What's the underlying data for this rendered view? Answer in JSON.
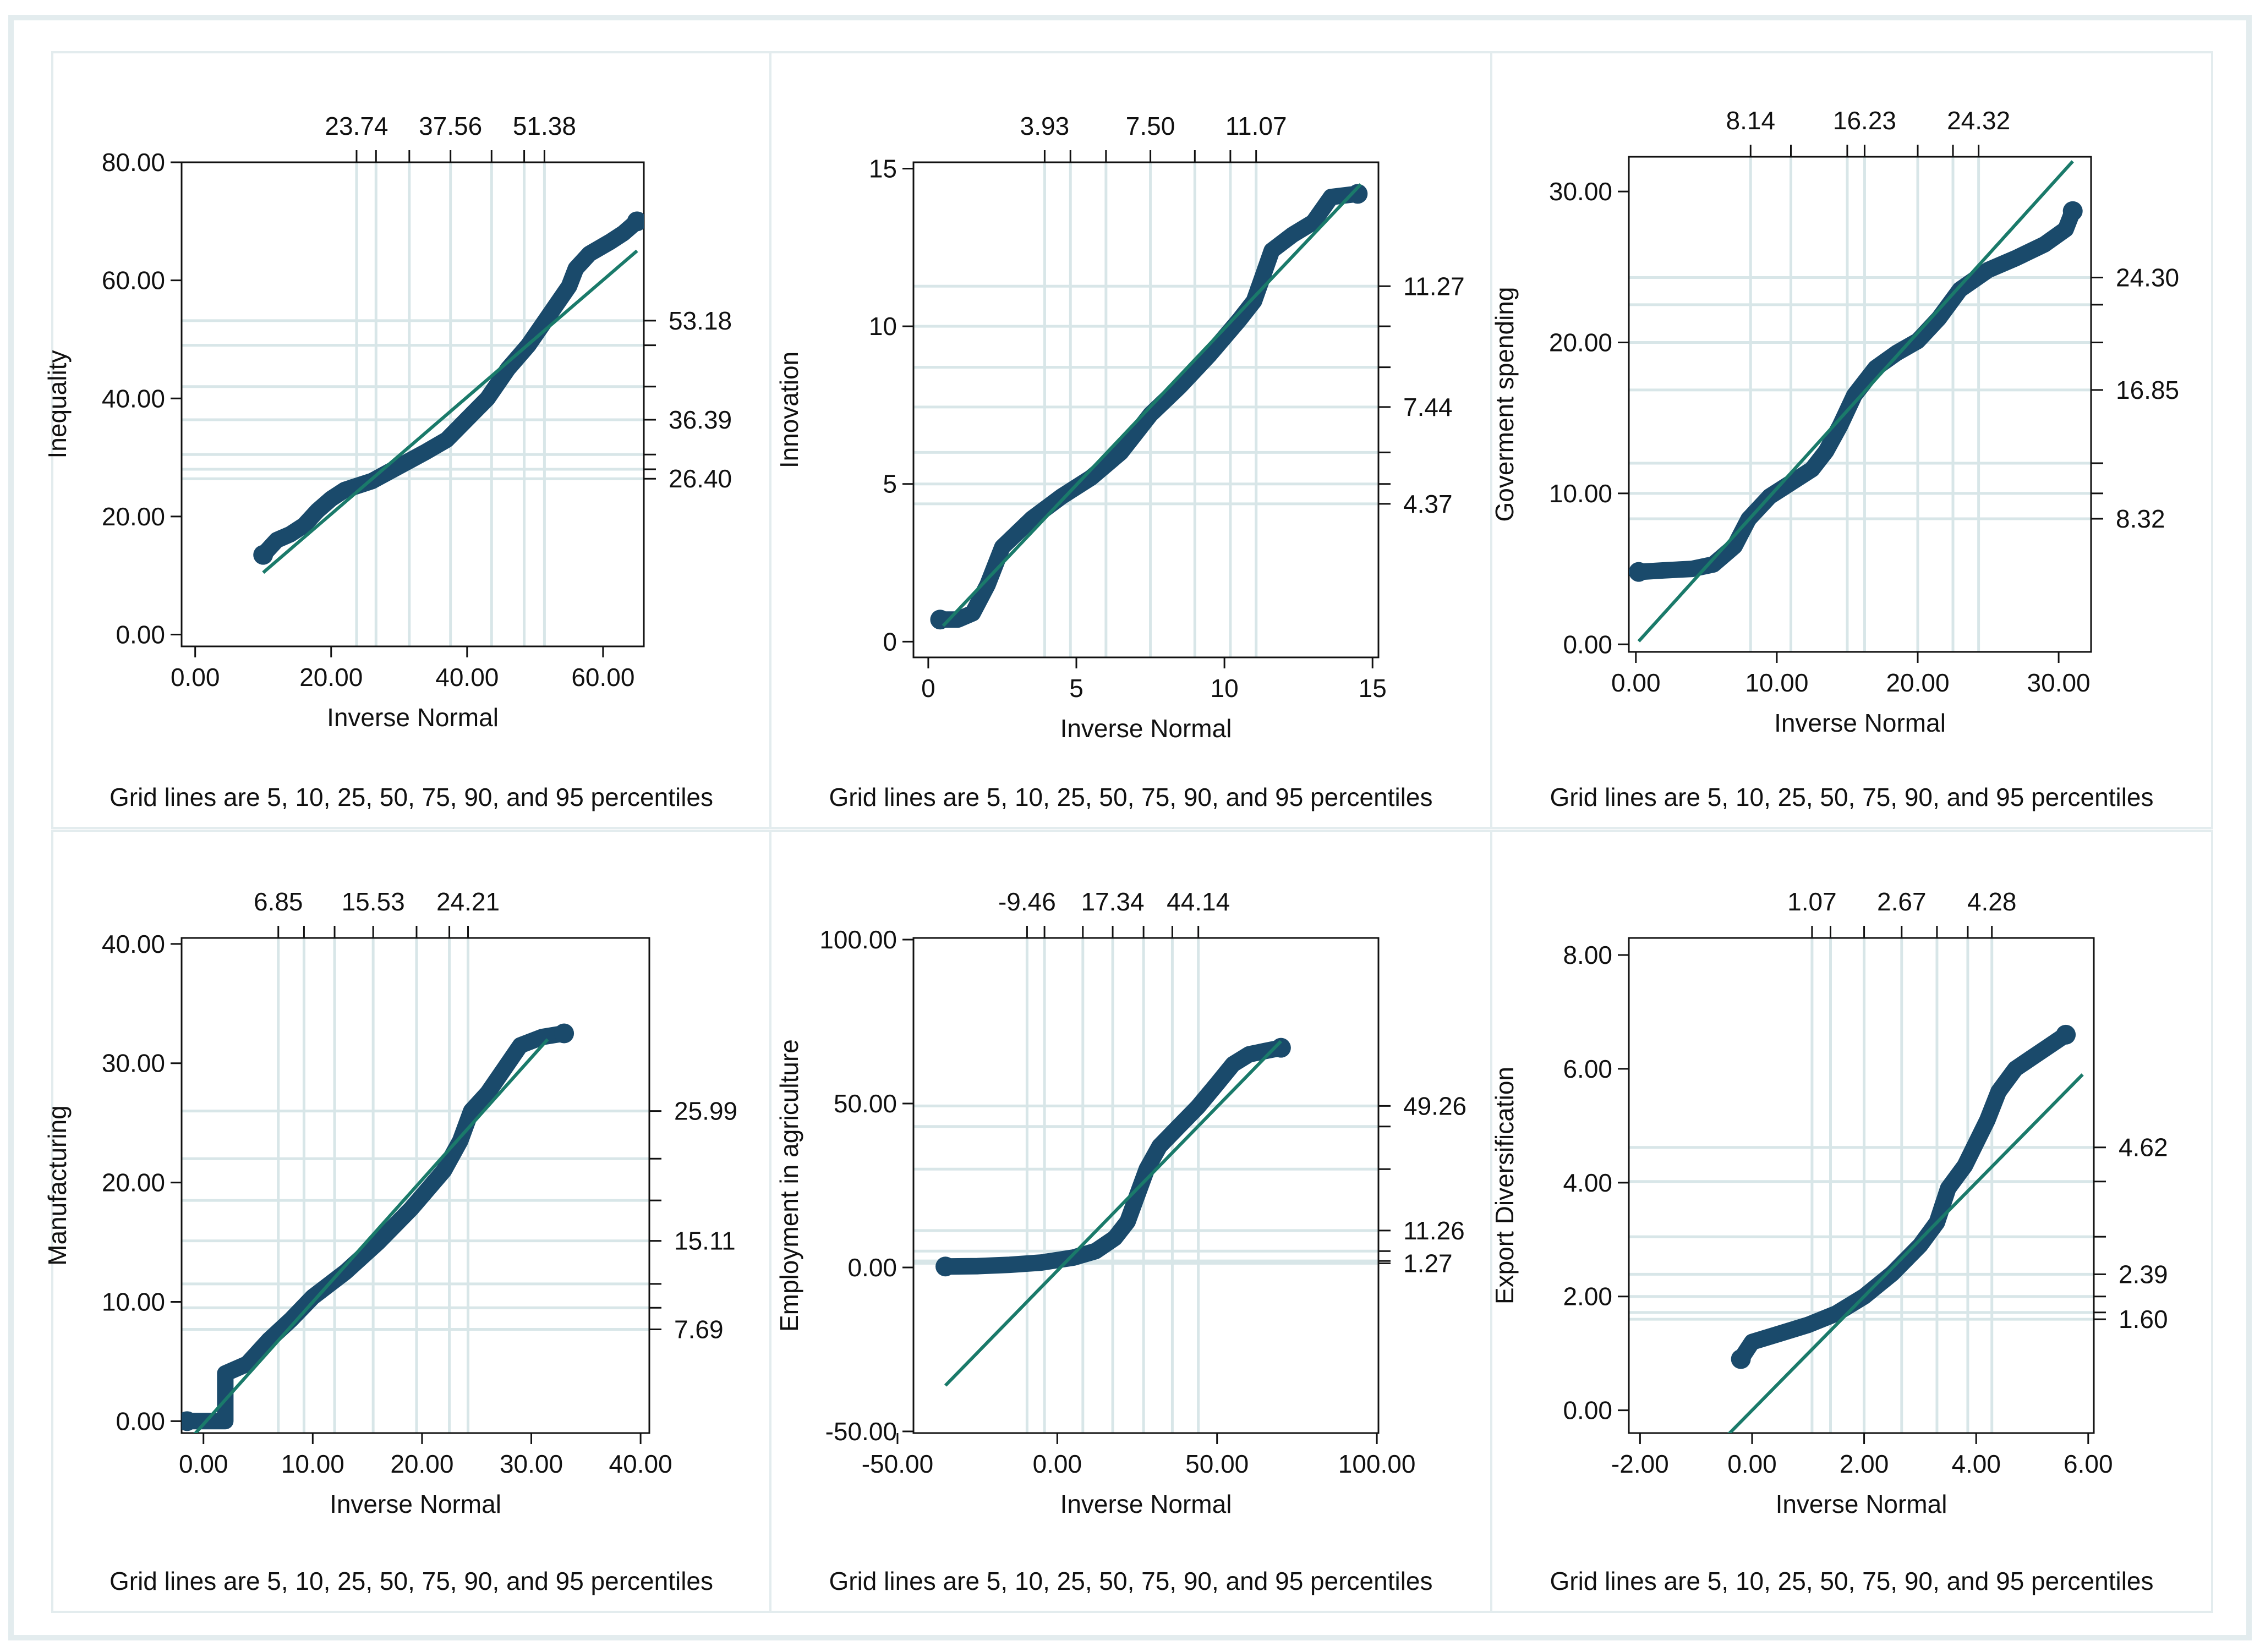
{
  "figure_note": "Grid lines are 5, 10, 25, 50, 75, 90, and 95 percentiles",
  "colors": {
    "marker": "#1a4a6b",
    "fit_line": "#1a7a6a",
    "grid": "#d8e6e8",
    "panel_border": "#e3ecee",
    "axis": "#111111"
  },
  "chart_data": [
    {
      "type": "scatter",
      "title": "",
      "ylabel": "Inequality",
      "xlabel": "Inverse Normal",
      "note": "Grid lines are 5, 10, 25, 50, 75, 90, and 95 percentiles",
      "xlim": [
        -2,
        66
      ],
      "ylim": [
        -2,
        80
      ],
      "x_ticks": [
        0,
        20,
        40,
        60
      ],
      "x_tick_labels": [
        "0.00",
        "20.00",
        "40.00",
        "60.00"
      ],
      "y_ticks": [
        0,
        20,
        40,
        60,
        80
      ],
      "y_tick_labels": [
        "0.00",
        "20.00",
        "40.00",
        "60.00",
        "80.00"
      ],
      "top_ticks": [
        23.74,
        26.6,
        31.5,
        37.56,
        43.6,
        48.4,
        51.38
      ],
      "top_labels": [
        {
          "value": 23.74,
          "text": "23.74"
        },
        {
          "value": 37.56,
          "text": "37.56"
        },
        {
          "value": 51.38,
          "text": "51.38"
        }
      ],
      "right_ticks": [
        26.4,
        28.0,
        30.5,
        36.39,
        42.0,
        49.0,
        53.18
      ],
      "right_labels": [
        {
          "value": 53.18,
          "text": "53.18"
        },
        {
          "value": 36.39,
          "text": "36.39"
        },
        {
          "value": 26.4,
          "text": "26.40"
        }
      ],
      "fit_line": [
        [
          10,
          10.5
        ],
        [
          65,
          65
        ]
      ],
      "curve": [
        [
          10,
          13.5
        ],
        [
          12,
          16
        ],
        [
          14,
          17
        ],
        [
          16,
          18.5
        ],
        [
          18,
          21
        ],
        [
          20,
          23
        ],
        [
          22,
          24.5
        ],
        [
          26,
          26
        ],
        [
          30,
          28.5
        ],
        [
          34,
          31
        ],
        [
          37,
          33
        ],
        [
          40,
          36.5
        ],
        [
          43,
          40
        ],
        [
          46,
          45
        ],
        [
          49,
          49
        ],
        [
          52,
          54
        ],
        [
          55,
          59
        ],
        [
          56,
          62
        ],
        [
          58,
          64.5
        ],
        [
          61,
          66.5
        ],
        [
          63,
          68
        ],
        [
          65,
          70
        ]
      ]
    },
    {
      "type": "scatter",
      "title": "",
      "ylabel": "Innovation",
      "xlabel": "Inverse Normal",
      "note": "Grid lines are 5, 10, 25, 50, 75, 90, and 95 percentiles",
      "xlim": [
        -0.5,
        15.2
      ],
      "ylim": [
        -0.5,
        15.2
      ],
      "x_ticks": [
        0,
        5,
        10,
        15
      ],
      "x_tick_labels": [
        "0",
        "5",
        "10",
        "15"
      ],
      "y_ticks": [
        0,
        5,
        10,
        15
      ],
      "y_tick_labels": [
        "0",
        "5",
        "10",
        "15"
      ],
      "top_ticks": [
        3.93,
        4.8,
        6.0,
        7.5,
        9.0,
        10.2,
        11.07
      ],
      "top_labels": [
        {
          "value": 3.93,
          "text": "3.93"
        },
        {
          "value": 7.5,
          "text": "7.50"
        },
        {
          "value": 11.07,
          "text": "11.07"
        }
      ],
      "right_ticks": [
        4.37,
        5.0,
        6.0,
        7.44,
        8.7,
        10.0,
        11.27
      ],
      "right_labels": [
        {
          "value": 11.27,
          "text": "11.27"
        },
        {
          "value": 7.44,
          "text": "7.44"
        },
        {
          "value": 4.37,
          "text": "4.37"
        }
      ],
      "fit_line": [
        [
          0.5,
          0.5
        ],
        [
          14.6,
          14.5
        ]
      ],
      "curve": [
        [
          0.4,
          0.7
        ],
        [
          1.0,
          0.7
        ],
        [
          1.5,
          0.9
        ],
        [
          2.0,
          1.8
        ],
        [
          2.5,
          3.0
        ],
        [
          3.5,
          3.9
        ],
        [
          4.5,
          4.6
        ],
        [
          5.5,
          5.2
        ],
        [
          6.5,
          6.0
        ],
        [
          7.5,
          7.2
        ],
        [
          8.5,
          8.1
        ],
        [
          9.5,
          9.1
        ],
        [
          10.5,
          10.2
        ],
        [
          11.0,
          10.8
        ],
        [
          11.3,
          11.6
        ],
        [
          11.6,
          12.4
        ],
        [
          12.3,
          12.9
        ],
        [
          13.0,
          13.3
        ],
        [
          13.6,
          14.1
        ],
        [
          14.5,
          14.2
        ]
      ]
    },
    {
      "type": "scatter",
      "title": "",
      "ylabel": "Goverment spending",
      "xlabel": "Inverse Normal",
      "note": "Grid lines are 5, 10, 25, 50, 75, 90, and 95 percentiles",
      "xlim": [
        -0.5,
        32.3
      ],
      "ylim": [
        -0.5,
        32.3
      ],
      "x_ticks": [
        0,
        10,
        20,
        30
      ],
      "x_tick_labels": [
        "0.00",
        "10.00",
        "20.00",
        "30.00"
      ],
      "y_ticks": [
        0,
        10,
        20,
        30
      ],
      "y_tick_labels": [
        "0.00",
        "10.00",
        "20.00",
        "30.00"
      ],
      "top_ticks": [
        8.14,
        11.0,
        15.0,
        16.23,
        20.0,
        22.5,
        24.32
      ],
      "top_labels": [
        {
          "value": 8.14,
          "text": "8.14"
        },
        {
          "value": 16.23,
          "text": "16.23"
        },
        {
          "value": 24.32,
          "text": "24.32"
        }
      ],
      "right_ticks": [
        8.32,
        10.0,
        12.0,
        16.85,
        20.0,
        22.5,
        24.3
      ],
      "right_labels": [
        {
          "value": 24.3,
          "text": "24.30"
        },
        {
          "value": 16.85,
          "text": "16.85"
        },
        {
          "value": 8.32,
          "text": "8.32"
        }
      ],
      "fit_line": [
        [
          0.2,
          0.2
        ],
        [
          31.0,
          32.0
        ]
      ],
      "curve": [
        [
          0.2,
          4.8
        ],
        [
          2.0,
          4.9
        ],
        [
          4.0,
          5.0
        ],
        [
          5.5,
          5.3
        ],
        [
          7.0,
          6.5
        ],
        [
          8.0,
          8.3
        ],
        [
          9.5,
          9.8
        ],
        [
          11.0,
          10.7
        ],
        [
          12.5,
          11.6
        ],
        [
          13.5,
          12.8
        ],
        [
          14.5,
          14.5
        ],
        [
          15.5,
          16.5
        ],
        [
          17.0,
          18.3
        ],
        [
          18.5,
          19.3
        ],
        [
          20.0,
          20.1
        ],
        [
          21.5,
          21.6
        ],
        [
          23.0,
          23.5
        ],
        [
          25.0,
          24.8
        ],
        [
          27.0,
          25.6
        ],
        [
          29.0,
          26.5
        ],
        [
          30.5,
          27.5
        ],
        [
          31.0,
          28.7
        ]
      ]
    },
    {
      "type": "scatter",
      "title": "",
      "ylabel": "Manufacturing",
      "xlabel": "Inverse Normal",
      "note": "Grid lines are 5, 10, 25, 50, 75, 90, and 95 percentiles",
      "xlim": [
        -2,
        40.8
      ],
      "ylim": [
        -1,
        40.5
      ],
      "x_ticks": [
        0,
        10,
        20,
        30,
        40
      ],
      "x_tick_labels": [
        "0.00",
        "10.00",
        "20.00",
        "30.00",
        "40.00"
      ],
      "y_ticks": [
        0,
        10,
        20,
        30,
        40
      ],
      "y_tick_labels": [
        "0.00",
        "10.00",
        "20.00",
        "30.00",
        "40.00"
      ],
      "top_ticks": [
        6.85,
        9.2,
        12.0,
        15.53,
        19.5,
        22.5,
        24.21
      ],
      "top_labels": [
        {
          "value": 6.85,
          "text": "6.85"
        },
        {
          "value": 15.53,
          "text": "15.53"
        },
        {
          "value": 24.21,
          "text": "24.21"
        }
      ],
      "right_ticks": [
        7.69,
        9.5,
        11.5,
        15.11,
        18.5,
        22.0,
        25.99
      ],
      "right_labels": [
        {
          "value": 25.99,
          "text": "25.99"
        },
        {
          "value": 15.11,
          "text": "15.11"
        },
        {
          "value": 7.69,
          "text": "7.69"
        }
      ],
      "fit_line": [
        [
          -1.5,
          -1.8
        ],
        [
          31.5,
          32.0
        ]
      ],
      "curve": [
        [
          -1.5,
          0
        ],
        [
          2.0,
          0
        ],
        [
          2.0,
          4.0
        ],
        [
          4.0,
          4.8
        ],
        [
          6.0,
          6.8
        ],
        [
          8.0,
          8.5
        ],
        [
          10.0,
          10.4
        ],
        [
          13.0,
          12.5
        ],
        [
          16.0,
          15.0
        ],
        [
          19.0,
          17.8
        ],
        [
          22.0,
          21.0
        ],
        [
          23.5,
          23.5
        ],
        [
          24.5,
          26.0
        ],
        [
          26.0,
          27.5
        ],
        [
          27.5,
          29.5
        ],
        [
          29.0,
          31.5
        ],
        [
          31.0,
          32.2
        ],
        [
          33.0,
          32.5
        ]
      ]
    },
    {
      "type": "scatter",
      "title": "",
      "ylabel": "Employment in agriculture",
      "xlabel": "Inverse Normal",
      "note": "Grid lines are 5, 10, 25, 50, 75, 90, and 95 percentiles",
      "xlim": [
        -45,
        100.5
      ],
      "ylim": [
        -50.5,
        100.5
      ],
      "x_ticks": [
        -50,
        0,
        50,
        100
      ],
      "x_tick_labels": [
        "-50.00",
        "0.00",
        "50.00",
        "100.00"
      ],
      "y_ticks": [
        -50,
        0,
        50,
        100
      ],
      "y_tick_labels": [
        "-50.00",
        "0.00",
        "50.00",
        "100.00"
      ],
      "top_ticks": [
        -9.46,
        -4.0,
        8.0,
        17.34,
        27.0,
        36.0,
        44.14
      ],
      "top_labels": [
        {
          "value": -9.46,
          "text": "-9.46"
        },
        {
          "value": 17.34,
          "text": "17.34"
        },
        {
          "value": 44.14,
          "text": "44.14"
        }
      ],
      "right_ticks": [
        1.27,
        2.0,
        5.0,
        11.26,
        30.0,
        43.0,
        49.26
      ],
      "right_labels": [
        {
          "value": 49.26,
          "text": "49.26"
        },
        {
          "value": 11.26,
          "text": "11.26"
        },
        {
          "value": 1.27,
          "text": "1.27"
        }
      ],
      "fit_line": [
        [
          -35,
          -36
        ],
        [
          70,
          69
        ]
      ],
      "curve": [
        [
          -35,
          0.3
        ],
        [
          -25,
          0.4
        ],
        [
          -15,
          0.8
        ],
        [
          -5,
          1.5
        ],
        [
          5,
          3.0
        ],
        [
          12,
          5.0
        ],
        [
          18,
          9.0
        ],
        [
          22,
          14.0
        ],
        [
          25,
          22.0
        ],
        [
          28,
          30.0
        ],
        [
          32,
          37.0
        ],
        [
          38,
          43.0
        ],
        [
          44,
          49.0
        ],
        [
          50,
          56.0
        ],
        [
          55,
          62.0
        ],
        [
          60,
          65.0
        ],
        [
          65,
          66.0
        ],
        [
          70,
          67.0
        ]
      ]
    },
    {
      "type": "scatter",
      "title": "",
      "ylabel": "Export Diversification",
      "xlabel": "Inverse Normal",
      "note": "Grid lines are 5, 10, 25, 50, 75, 90, and 95 percentiles",
      "xlim": [
        -2.2,
        6.1
      ],
      "ylim": [
        -0.4,
        8.3
      ],
      "x_ticks": [
        -2,
        0,
        2,
        4,
        6
      ],
      "x_tick_labels": [
        "-2.00",
        "0.00",
        "2.00",
        "4.00",
        "6.00"
      ],
      "y_ticks": [
        0,
        2,
        4,
        6,
        8
      ],
      "y_tick_labels": [
        "0.00",
        "2.00",
        "4.00",
        "6.00",
        "8.00"
      ],
      "top_ticks": [
        1.07,
        1.4,
        2.0,
        2.67,
        3.3,
        3.85,
        4.28
      ],
      "top_labels": [
        {
          "value": 1.07,
          "text": "1.07"
        },
        {
          "value": 2.67,
          "text": "2.67"
        },
        {
          "value": 4.28,
          "text": "4.28"
        }
      ],
      "right_ticks": [
        1.6,
        1.72,
        2.0,
        2.39,
        3.05,
        4.02,
        4.62
      ],
      "right_labels": [
        {
          "value": 4.62,
          "text": "4.62"
        },
        {
          "value": 2.39,
          "text": "2.39"
        },
        {
          "value": 1.6,
          "text": "1.60"
        }
      ],
      "fit_line": [
        [
          -0.5,
          -0.5
        ],
        [
          5.9,
          5.9
        ]
      ],
      "curve": [
        [
          -0.2,
          0.9
        ],
        [
          0.0,
          1.2
        ],
        [
          0.5,
          1.35
        ],
        [
          1.0,
          1.5
        ],
        [
          1.5,
          1.7
        ],
        [
          2.0,
          2.0
        ],
        [
          2.5,
          2.4
        ],
        [
          3.0,
          2.9
        ],
        [
          3.3,
          3.3
        ],
        [
          3.5,
          3.9
        ],
        [
          3.8,
          4.3
        ],
        [
          4.0,
          4.7
        ],
        [
          4.2,
          5.1
        ],
        [
          4.4,
          5.6
        ],
        [
          4.7,
          6.0
        ],
        [
          5.0,
          6.2
        ],
        [
          5.3,
          6.4
        ],
        [
          5.6,
          6.6
        ]
      ]
    }
  ]
}
